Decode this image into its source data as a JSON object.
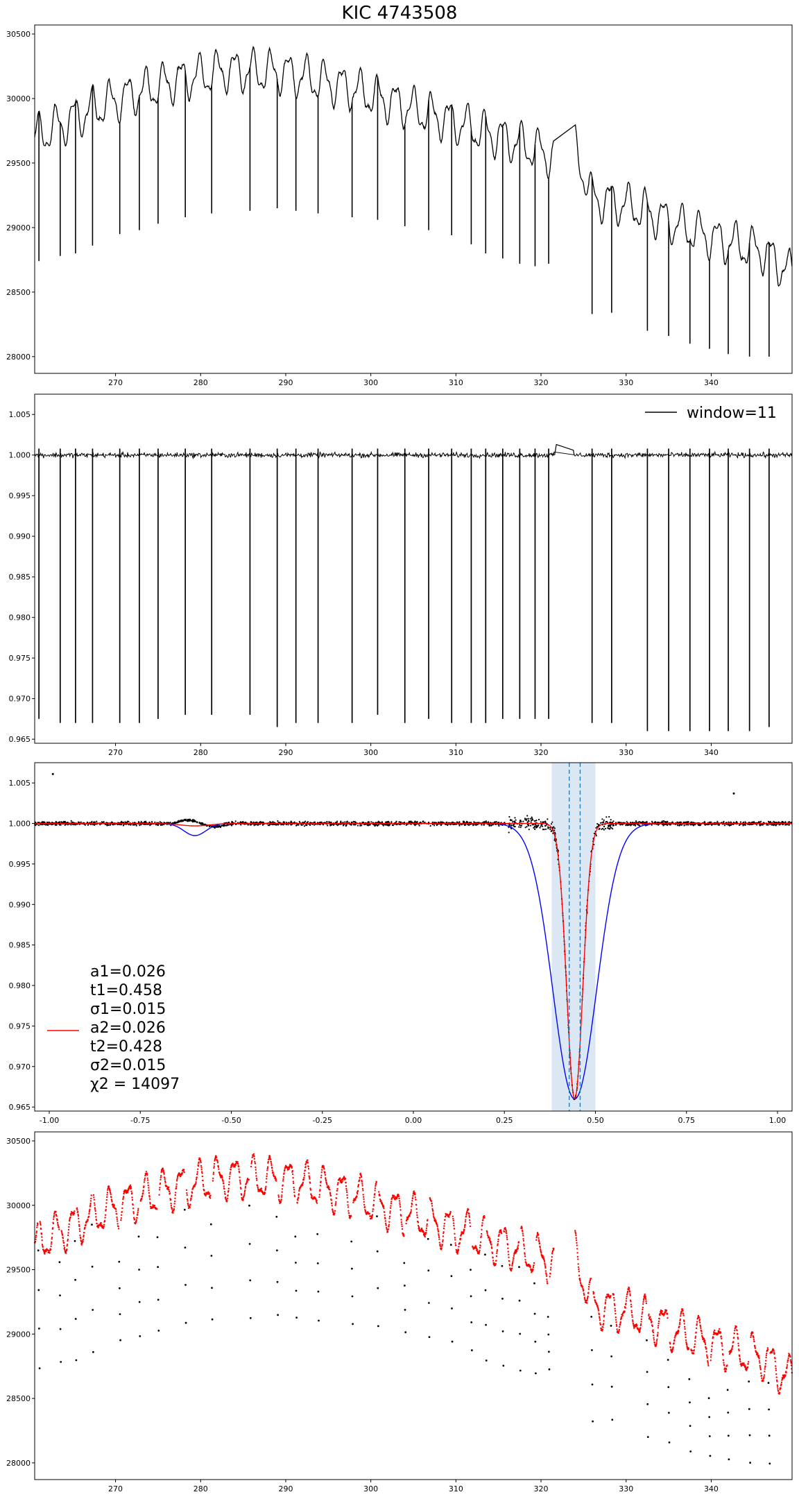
{
  "title": "KIC 4743508",
  "colors": {
    "black": "#000000",
    "red": "#ff0000",
    "blue": "#0000ff",
    "dashed": "#1f77b4",
    "band": "#dbe7f3"
  },
  "chart_data": [
    {
      "type": "line",
      "panel": "raw-flux",
      "xlim": [
        260.5,
        349.5
      ],
      "ylim": [
        27870,
        30570
      ],
      "x_ticks": [
        270,
        280,
        290,
        300,
        310,
        320,
        330,
        340
      ],
      "y_ticks": [
        28000,
        28500,
        29000,
        29500,
        30000,
        30500
      ],
      "trend_knots": [
        [
          260.5,
          29700
        ],
        [
          268,
          29940
        ],
        [
          276,
          30120
        ],
        [
          283,
          30220
        ],
        [
          290,
          30200
        ],
        [
          297,
          30090
        ],
        [
          304,
          29940
        ],
        [
          311,
          29790
        ],
        [
          318,
          29640
        ],
        [
          321,
          29560
        ],
        [
          324,
          29620
        ],
        [
          326,
          29230
        ],
        [
          331,
          29160
        ],
        [
          336,
          29020
        ],
        [
          341,
          28900
        ],
        [
          346,
          28820
        ],
        [
          349.5,
          28640
        ]
      ],
      "gap": [
        321.5,
        324.0
      ],
      "eclipse_centers": [
        261.0,
        263.5,
        265.3,
        267.3,
        270.5,
        272.8,
        275.0,
        278.2,
        281.3,
        285.8,
        289.0,
        291.2,
        293.8,
        297.8,
        300.8,
        304.0,
        306.8,
        309.5,
        311.8,
        313.5,
        315.5,
        317.5,
        319.3,
        320.9,
        326.0,
        328.3,
        332.5,
        335.0,
        337.5,
        339.8,
        342.0,
        344.5,
        346.8
      ],
      "eclipse_minima": [
        28740,
        28780,
        28800,
        28860,
        28950,
        28980,
        29030,
        29080,
        29110,
        29130,
        29150,
        29130,
        29110,
        29080,
        29060,
        29010,
        28980,
        28940,
        28870,
        28800,
        28760,
        28720,
        28700,
        28720,
        28330,
        28340,
        28200,
        28160,
        28100,
        28060,
        28020,
        28000,
        28000
      ]
    },
    {
      "type": "line",
      "panel": "detrended",
      "legend": "window=11",
      "xlim": [
        260.5,
        349.5
      ],
      "ylim": [
        0.9645,
        1.0075
      ],
      "x_ticks": [
        270,
        280,
        290,
        300,
        310,
        320,
        330,
        340
      ],
      "y_ticks": [
        0.965,
        0.97,
        0.975,
        0.98,
        0.985,
        0.99,
        0.995,
        1.0,
        1.005
      ],
      "eclipse_centers": [
        261.0,
        263.5,
        265.3,
        267.3,
        270.5,
        272.8,
        275.0,
        278.2,
        281.3,
        285.8,
        289.0,
        291.2,
        293.8,
        297.8,
        300.8,
        304.0,
        306.8,
        309.5,
        311.8,
        313.5,
        315.5,
        317.5,
        319.3,
        320.9,
        326.0,
        328.3,
        332.5,
        335.0,
        337.5,
        339.8,
        342.0,
        344.5,
        346.8
      ],
      "eclipse_depths": [
        0.9675,
        0.967,
        0.967,
        0.967,
        0.967,
        0.967,
        0.9675,
        0.968,
        0.968,
        0.968,
        0.9665,
        0.967,
        0.967,
        0.967,
        0.968,
        0.967,
        0.9675,
        0.967,
        0.967,
        0.967,
        0.9675,
        0.9675,
        0.9675,
        0.9675,
        0.967,
        0.967,
        0.966,
        0.966,
        0.966,
        0.966,
        0.966,
        0.966,
        0.9665
      ]
    },
    {
      "type": "scatter",
      "panel": "phase-folded",
      "xlim": [
        -1.04,
        1.04
      ],
      "ylim": [
        0.9645,
        1.0075
      ],
      "x_ticks": [
        -1.0,
        -0.75,
        -0.5,
        -0.25,
        0.0,
        0.25,
        0.5,
        0.75,
        1.0
      ],
      "y_ticks": [
        0.965,
        0.97,
        0.975,
        0.98,
        0.985,
        0.99,
        0.995,
        1.0,
        1.005
      ],
      "model_red": {
        "a": 0.034,
        "t": 0.443,
        "sigma": 0.022,
        "secondary_depth": 0.0003,
        "secondary_t": -0.6
      },
      "model_blue": {
        "a": 0.034,
        "t": 0.443,
        "sigma": 0.06,
        "secondary_depth": 0.0015,
        "secondary_t": -0.6,
        "secondary_sigma": 0.03
      },
      "dashed_lines": [
        0.428,
        0.458
      ],
      "band": [
        0.38,
        0.5
      ],
      "outlier_points": [
        [
          -0.99,
          1.0061
        ],
        [
          0.88,
          1.0037
        ]
      ],
      "legend_lines": [
        "a1=0.026",
        "t1=0.458",
        "σ1=0.015",
        "a2=0.026",
        "t2=0.428",
        "σ2=0.015",
        "χ2 = 14097"
      ]
    },
    {
      "type": "scatter",
      "panel": "eclipse-mask",
      "xlim": [
        260.5,
        349.5
      ],
      "ylim": [
        27870,
        30570
      ],
      "x_ticks": [
        270,
        280,
        290,
        300,
        310,
        320,
        330,
        340
      ],
      "y_ticks": [
        28000,
        28500,
        29000,
        29500,
        30000,
        30500
      ],
      "series": [
        {
          "color": "red",
          "role": "out-of-eclipse"
        },
        {
          "color": "black",
          "role": "in-eclipse"
        }
      ]
    }
  ]
}
